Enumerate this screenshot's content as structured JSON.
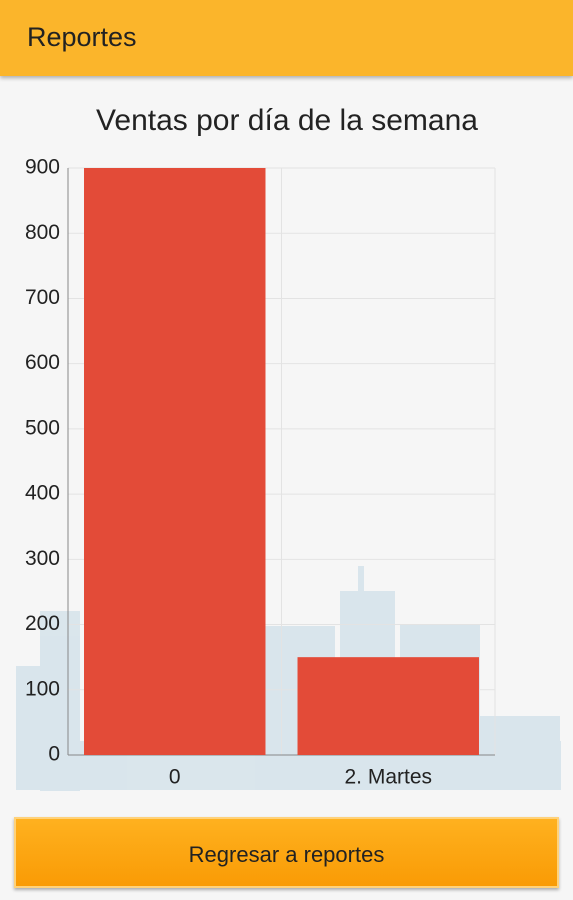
{
  "header": {
    "title": "Reportes"
  },
  "chart_data": {
    "type": "bar",
    "title": "Ventas por día de la semana",
    "categories": [
      "0",
      "2. Martes"
    ],
    "values": [
      900,
      150
    ],
    "color": "#e34b38",
    "ylim": [
      0,
      900
    ],
    "yticks": [
      0,
      100,
      200,
      300,
      400,
      500,
      600,
      700,
      800,
      900
    ],
    "grid": true
  },
  "button": {
    "label": "Regresar a reportes"
  }
}
